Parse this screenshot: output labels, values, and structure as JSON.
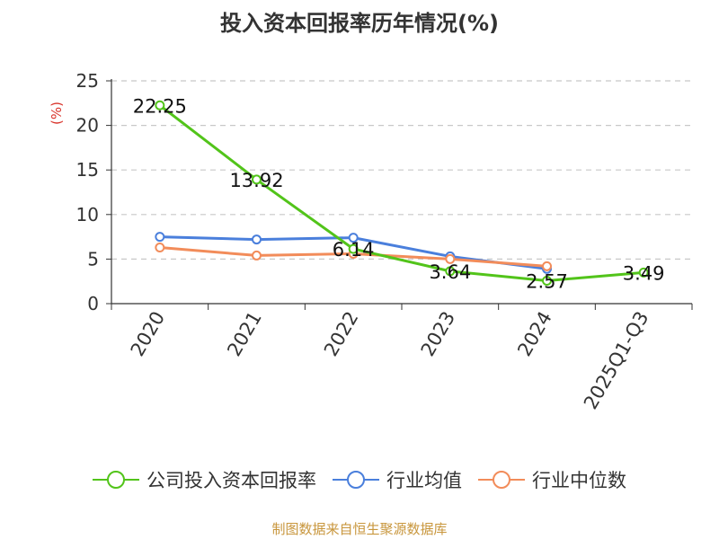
{
  "title": "投入资本回报率历年情况(%)",
  "source": "制图数据来自恒生聚源数据库",
  "chart_data": {
    "type": "line",
    "title": "投入资本回报率历年情况(%)",
    "ylabel": "(%)",
    "ylim": [
      0,
      25
    ],
    "yticks": [
      0,
      5,
      10,
      15,
      20,
      25
    ],
    "categories": [
      "2020",
      "2021",
      "2022",
      "2023",
      "2024",
      "2025Q1-Q3"
    ],
    "grid": true,
    "legend_position": "bottom",
    "series": [
      {
        "name": "公司投入资本回报率",
        "color": "#52c41a",
        "values": [
          22.25,
          13.92,
          6.14,
          3.64,
          2.57,
          3.49
        ],
        "labels": true
      },
      {
        "name": "行业均值",
        "color": "#4a7fdc",
        "values": [
          7.5,
          7.2,
          7.4,
          5.3,
          3.9,
          null
        ],
        "labels": false
      },
      {
        "name": "行业中位数",
        "color": "#f28c5a",
        "values": [
          6.3,
          5.4,
          5.6,
          5.0,
          4.2,
          null
        ],
        "labels": false
      }
    ]
  }
}
